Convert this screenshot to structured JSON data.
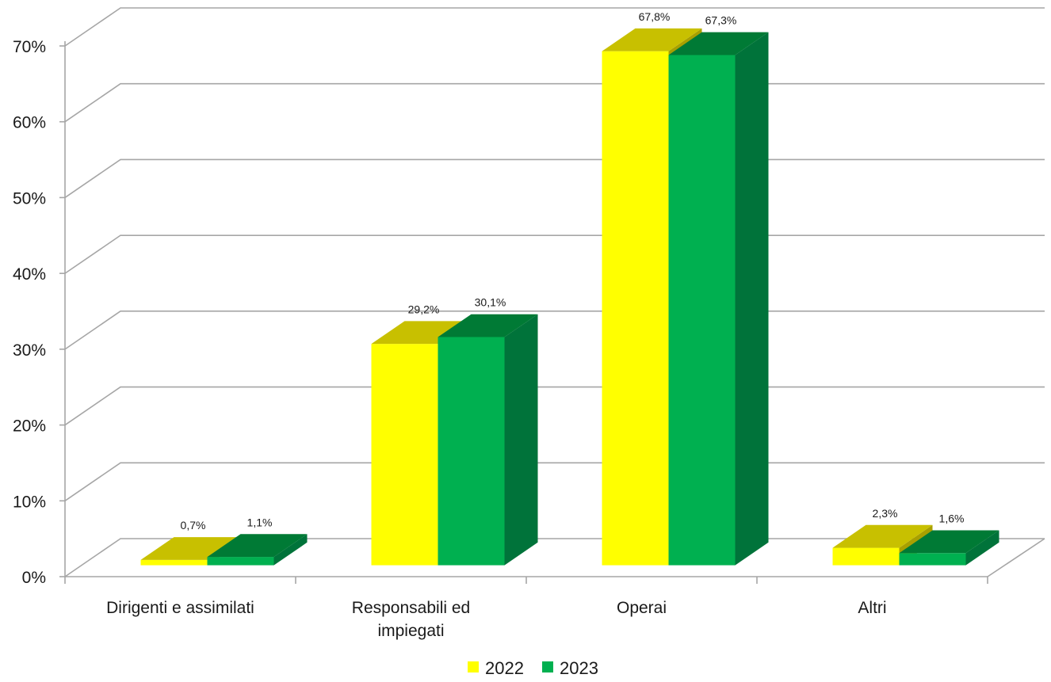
{
  "chart_data": {
    "type": "bar",
    "categories": [
      "Dirigenti e assimilati",
      "Responsabili ed impiegati",
      "Operai",
      "Altri"
    ],
    "series": [
      {
        "name": "2022",
        "values": [
          0.7,
          29.2,
          67.8,
          2.3
        ],
        "labels": [
          "0,7%",
          "29,2%",
          "67,8%",
          "2,3%"
        ]
      },
      {
        "name": "2023",
        "values": [
          1.1,
          30.1,
          67.3,
          1.6
        ],
        "labels": [
          "1,1%",
          "30,1%",
          "67,3%",
          "1,6%"
        ]
      }
    ],
    "y_ticks": [
      "0%",
      "10%",
      "20%",
      "30%",
      "40%",
      "50%",
      "60%",
      "70%"
    ],
    "ylim": [
      0,
      70
    ],
    "grid": true,
    "legend_position": "bottom",
    "three_d": true,
    "colors": {
      "2022": {
        "front": "#ffff00",
        "top": "#c8c000",
        "side": "#a8a000"
      },
      "2023": {
        "front": "#00b050",
        "top": "#007a35",
        "side": "#00733a"
      },
      "grid": "#a6a6a6",
      "axis": "#a6a6a6"
    }
  }
}
